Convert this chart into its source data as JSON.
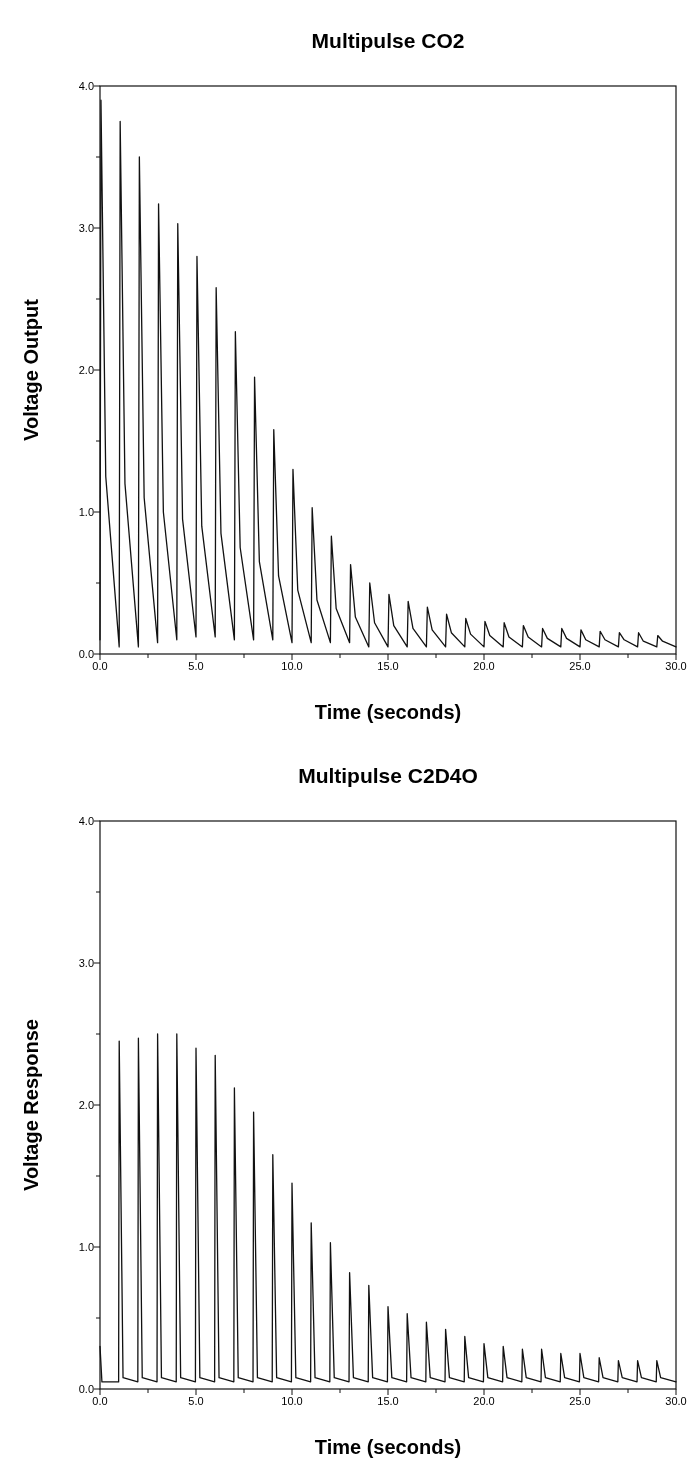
{
  "chart_data": [
    {
      "type": "line",
      "title": "Multipulse CO2",
      "xlabel": "Time (seconds)",
      "ylabel": "Voltage Output",
      "xlim": [
        0,
        30
      ],
      "ylim": [
        0,
        4
      ],
      "xticks": [
        {
          "value": 0,
          "label": "0.0"
        },
        {
          "value": 2.5,
          "label": null
        },
        {
          "value": 5,
          "label": "5.0"
        },
        {
          "value": 7.5,
          "label": null
        },
        {
          "value": 10,
          "label": "10.0"
        },
        {
          "value": 12.5,
          "label": null
        },
        {
          "value": 15,
          "label": "15.0"
        },
        {
          "value": 17.5,
          "label": null
        },
        {
          "value": 20,
          "label": "20.0"
        },
        {
          "value": 22.5,
          "label": null
        },
        {
          "value": 25,
          "label": "25.0"
        },
        {
          "value": 27.5,
          "label": null
        },
        {
          "value": 30,
          "label": "30.0"
        }
      ],
      "yticks": [
        {
          "value": 0,
          "label": "0.0"
        },
        {
          "value": 0.5,
          "label": null
        },
        {
          "value": 1,
          "label": "1.0"
        },
        {
          "value": 1.5,
          "label": null
        },
        {
          "value": 2,
          "label": "2.0"
        },
        {
          "value": 2.5,
          "label": null
        },
        {
          "value": 3,
          "label": "3.0"
        },
        {
          "value": 3.5,
          "label": null
        },
        {
          "value": 4,
          "label": "4.0"
        }
      ],
      "series": [
        {
          "color": "#111111",
          "x": [
            0,
            0.05,
            0.3,
            1,
            1.05,
            1.3,
            2,
            2.05,
            2.3,
            3,
            3.05,
            3.3,
            4,
            4.05,
            4.3,
            5,
            5.05,
            5.3,
            6,
            6.05,
            6.3,
            7,
            7.05,
            7.3,
            8,
            8.05,
            8.3,
            9,
            9.05,
            9.3,
            10,
            10.05,
            10.3,
            11,
            11.05,
            11.3,
            12,
            12.05,
            12.3,
            13,
            13.05,
            13.3,
            14,
            14.05,
            14.3,
            15,
            15.05,
            15.3,
            16,
            16.05,
            16.3,
            17,
            17.05,
            17.3,
            18,
            18.05,
            18.3,
            19,
            19.05,
            19.3,
            20,
            20.05,
            20.3,
            21,
            21.05,
            21.3,
            22,
            22.05,
            22.3,
            23,
            23.05,
            23.3,
            24,
            24.05,
            24.3,
            25,
            25.05,
            25.3,
            26,
            26.05,
            26.3,
            27,
            27.05,
            27.3,
            28,
            28.05,
            28.3,
            29,
            29.05,
            29.3,
            30
          ],
          "values": [
            0.1,
            3.9,
            1.25,
            0.05,
            3.75,
            1.2,
            0.05,
            3.5,
            1.1,
            0.08,
            3.17,
            1.0,
            0.1,
            3.03,
            0.95,
            0.12,
            2.8,
            0.9,
            0.12,
            2.58,
            0.85,
            0.1,
            2.27,
            0.75,
            0.1,
            1.95,
            0.65,
            0.1,
            1.58,
            0.55,
            0.08,
            1.3,
            0.45,
            0.08,
            1.03,
            0.38,
            0.08,
            0.83,
            0.32,
            0.08,
            0.63,
            0.26,
            0.05,
            0.5,
            0.22,
            0.05,
            0.42,
            0.2,
            0.05,
            0.37,
            0.18,
            0.05,
            0.33,
            0.17,
            0.05,
            0.28,
            0.15,
            0.05,
            0.25,
            0.14,
            0.05,
            0.23,
            0.13,
            0.05,
            0.22,
            0.12,
            0.05,
            0.2,
            0.12,
            0.05,
            0.18,
            0.11,
            0.05,
            0.18,
            0.11,
            0.05,
            0.17,
            0.1,
            0.05,
            0.16,
            0.1,
            0.05,
            0.15,
            0.1,
            0.05,
            0.15,
            0.09,
            0.05,
            0.13,
            0.09,
            0.05
          ]
        }
      ]
    },
    {
      "type": "line",
      "title": "Multipulse C2D4O",
      "xlabel": "Time (seconds)",
      "ylabel": "Voltage Response",
      "xlim": [
        0,
        30
      ],
      "ylim": [
        0,
        4
      ],
      "xticks": [
        {
          "value": 0,
          "label": "0.0"
        },
        {
          "value": 2.5,
          "label": null
        },
        {
          "value": 5,
          "label": "5.0"
        },
        {
          "value": 7.5,
          "label": null
        },
        {
          "value": 10,
          "label": "10.0"
        },
        {
          "value": 12.5,
          "label": null
        },
        {
          "value": 15,
          "label": "15.0"
        },
        {
          "value": 17.5,
          "label": null
        },
        {
          "value": 20,
          "label": "20.0"
        },
        {
          "value": 22.5,
          "label": null
        },
        {
          "value": 25,
          "label": "25.0"
        },
        {
          "value": 27.5,
          "label": null
        },
        {
          "value": 30,
          "label": "30.0"
        }
      ],
      "yticks": [
        {
          "value": 0,
          "label": "0.0"
        },
        {
          "value": 0.5,
          "label": null
        },
        {
          "value": 1,
          "label": "1.0"
        },
        {
          "value": 1.5,
          "label": null
        },
        {
          "value": 2,
          "label": "2.0"
        },
        {
          "value": 2.5,
          "label": null
        },
        {
          "value": 3,
          "label": "3.0"
        },
        {
          "value": 3.5,
          "label": null
        },
        {
          "value": 4,
          "label": "4.0"
        }
      ],
      "series": [
        {
          "color": "#111111",
          "x": [
            0,
            0.1,
            0.97,
            1,
            1.2,
            1.97,
            2,
            2.2,
            2.97,
            3,
            3.2,
            3.97,
            4,
            4.2,
            4.97,
            5,
            5.2,
            5.97,
            6,
            6.2,
            6.97,
            7,
            7.2,
            7.97,
            8,
            8.2,
            8.97,
            9,
            9.2,
            9.97,
            10,
            10.2,
            10.97,
            11,
            11.2,
            11.97,
            12,
            12.2,
            12.97,
            13,
            13.2,
            13.97,
            14,
            14.2,
            14.97,
            15,
            15.2,
            15.97,
            16,
            16.2,
            16.97,
            17,
            17.2,
            17.97,
            18,
            18.2,
            18.97,
            19,
            19.2,
            19.97,
            20,
            20.2,
            20.97,
            21,
            21.2,
            21.97,
            22,
            22.2,
            22.97,
            23,
            23.2,
            23.97,
            24,
            24.2,
            24.97,
            25,
            25.2,
            25.97,
            26,
            26.2,
            26.97,
            27,
            27.2,
            27.97,
            28,
            28.2,
            28.97,
            29,
            29.2,
            30
          ],
          "values": [
            0.3,
            0.05,
            0.05,
            2.45,
            0.08,
            0.05,
            2.47,
            0.08,
            0.05,
            2.5,
            0.08,
            0.05,
            2.5,
            0.08,
            0.05,
            2.4,
            0.08,
            0.05,
            2.35,
            0.08,
            0.05,
            2.12,
            0.08,
            0.05,
            1.95,
            0.08,
            0.05,
            1.65,
            0.08,
            0.05,
            1.45,
            0.08,
            0.05,
            1.17,
            0.08,
            0.05,
            1.03,
            0.08,
            0.05,
            0.82,
            0.08,
            0.05,
            0.73,
            0.08,
            0.05,
            0.58,
            0.08,
            0.05,
            0.53,
            0.08,
            0.05,
            0.47,
            0.08,
            0.05,
            0.42,
            0.08,
            0.05,
            0.37,
            0.08,
            0.05,
            0.32,
            0.08,
            0.05,
            0.3,
            0.08,
            0.05,
            0.28,
            0.08,
            0.05,
            0.28,
            0.08,
            0.05,
            0.25,
            0.08,
            0.05,
            0.25,
            0.08,
            0.05,
            0.22,
            0.08,
            0.05,
            0.2,
            0.08,
            0.05,
            0.2,
            0.08,
            0.05,
            0.2,
            0.08,
            0.05
          ]
        }
      ]
    }
  ]
}
